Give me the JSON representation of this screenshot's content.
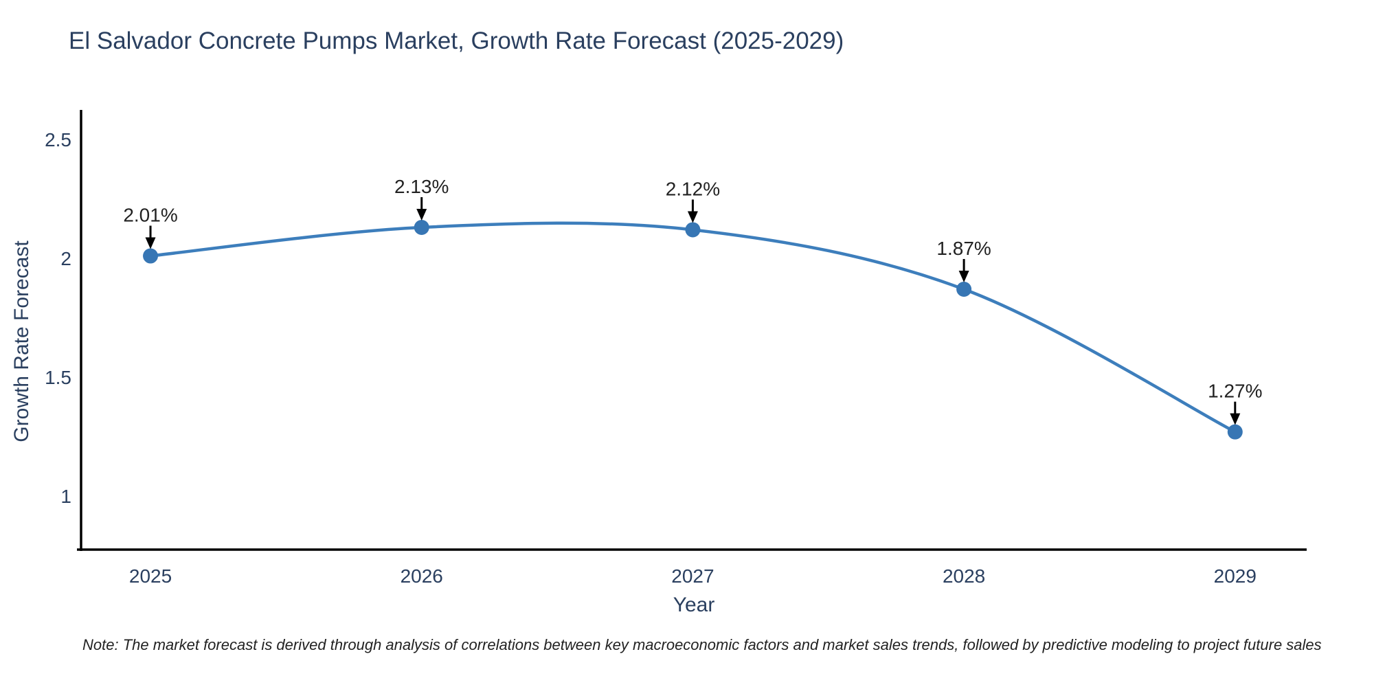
{
  "chart_data": {
    "type": "line",
    "title": "El Salvador Concrete Pumps Market, Growth Rate Forecast (2025-2029)",
    "xlabel": "Year",
    "ylabel": "Growth Rate Forecast",
    "x": [
      2025,
      2026,
      2027,
      2028,
      2029
    ],
    "xtick_labels": [
      "2025",
      "2026",
      "2027",
      "2028",
      "2029"
    ],
    "y": [
      2.01,
      2.13,
      2.12,
      1.87,
      1.27
    ],
    "point_labels": [
      "2.01%",
      "2.13%",
      "2.12%",
      "1.87%",
      "1.27%"
    ],
    "ytick_values": [
      1,
      1.5,
      2,
      2.5
    ],
    "ytick_labels": [
      "1",
      "1.5",
      "2",
      "2.5"
    ],
    "xlim": [
      2024.744,
      2029.264
    ],
    "ylim": [
      0.775,
      2.624
    ],
    "grid": false,
    "legend": "none",
    "line_shape": "spline",
    "colors": {
      "line": "#3d7ebc",
      "marker": "#3776b4",
      "axis": "#000000",
      "tick_text": "#2a3f5f",
      "title_text": "#2a3f5f",
      "axis_title_text": "#2a3f5f",
      "annotation_text": "#222222",
      "arrow": "#000000",
      "note_text": "#222222",
      "background": "#ffffff"
    }
  },
  "footnote": "Note: The market forecast is derived through analysis of correlations between key macroeconomic factors and market sales trends, followed by predictive modeling to project future sales"
}
